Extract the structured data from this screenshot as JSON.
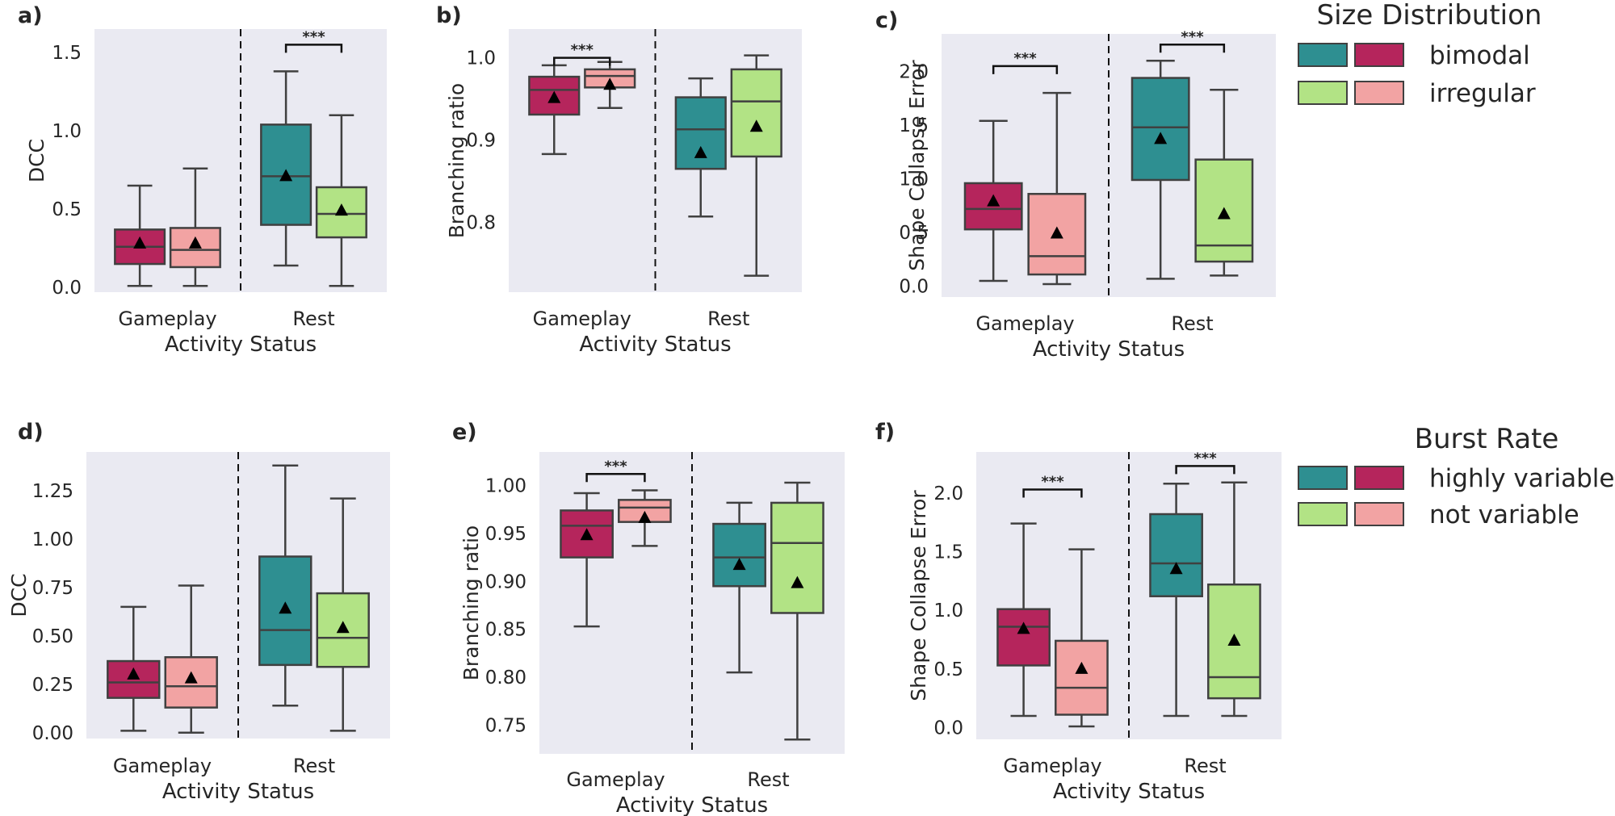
{
  "colors": {
    "teal": "#2e8f91",
    "crimson": "#b5255c",
    "lightgreen": "#b2e385",
    "pink": "#f2a3a3",
    "background": "#eaeaf2"
  },
  "legends": [
    {
      "title": "Size Distribution",
      "entries": [
        {
          "label": "bimodal",
          "swatches": [
            "teal",
            "crimson"
          ]
        },
        {
          "label": "irregular",
          "swatches": [
            "lightgreen",
            "pink"
          ]
        }
      ]
    },
    {
      "title": "Burst Rate",
      "entries": [
        {
          "label": "highly variable",
          "swatches": [
            "teal",
            "crimson"
          ]
        },
        {
          "label": "not variable",
          "swatches": [
            "lightgreen",
            "pink"
          ]
        }
      ]
    }
  ],
  "chart_data": [
    {
      "panel": "a)",
      "type": "box",
      "ylabel": "DCC",
      "xlabel": "Activity Status",
      "ylim": [
        -0.03,
        1.65
      ],
      "yticks": [
        "0.0",
        "0.5",
        "1.0",
        "1.5"
      ],
      "categories": [
        "Gameplay",
        "Rest"
      ],
      "boxes": [
        {
          "cat": 0,
          "side": 0,
          "color": "crimson",
          "whislo": 0.01,
          "q1": 0.15,
          "med": 0.26,
          "q3": 0.37,
          "whishi": 0.65,
          "mean": 0.28
        },
        {
          "cat": 0,
          "side": 1,
          "color": "pink",
          "whislo": 0.01,
          "q1": 0.13,
          "med": 0.24,
          "q3": 0.38,
          "whishi": 0.76,
          "mean": 0.28
        },
        {
          "cat": 1,
          "side": 0,
          "color": "teal",
          "whislo": 0.14,
          "q1": 0.4,
          "med": 0.71,
          "q3": 1.04,
          "whishi": 1.38,
          "mean": 0.71
        },
        {
          "cat": 1,
          "side": 1,
          "color": "lightgreen",
          "whislo": 0.01,
          "q1": 0.32,
          "med": 0.47,
          "q3": 0.64,
          "whishi": 1.1,
          "mean": 0.49
        }
      ],
      "significance": [
        {
          "cat": 1,
          "y": 1.55,
          "label": "***"
        }
      ]
    },
    {
      "panel": "b)",
      "type": "box",
      "ylabel": "Branching ratio",
      "xlabel": "Activity Status",
      "ylim": [
        0.715,
        1.035
      ],
      "yticks": [
        "0.8",
        "0.9",
        "1.0"
      ],
      "categories": [
        "Gameplay",
        "Rest"
      ],
      "boxes": [
        {
          "cat": 0,
          "side": 0,
          "color": "crimson",
          "whislo": 0.883,
          "q1": 0.931,
          "med": 0.961,
          "q3": 0.977,
          "whishi": 0.991,
          "mean": 0.951
        },
        {
          "cat": 0,
          "side": 1,
          "color": "pink",
          "whislo": 0.939,
          "q1": 0.964,
          "med": 0.978,
          "q3": 0.986,
          "whishi": 0.995,
          "mean": 0.967
        },
        {
          "cat": 1,
          "side": 0,
          "color": "teal",
          "whislo": 0.807,
          "q1": 0.865,
          "med": 0.913,
          "q3": 0.952,
          "whishi": 0.975,
          "mean": 0.884
        },
        {
          "cat": 1,
          "side": 1,
          "color": "lightgreen",
          "whislo": 0.735,
          "q1": 0.88,
          "med": 0.947,
          "q3": 0.986,
          "whishi": 1.003,
          "mean": 0.916
        }
      ],
      "significance": [
        {
          "cat": 0,
          "y": 1.0,
          "label": "***"
        }
      ]
    },
    {
      "panel": "c)",
      "type": "box",
      "ylabel": "Shape Collapse Error",
      "xlabel": "Activity Status",
      "ylim": [
        -0.1,
        2.35
      ],
      "yticks": [
        "0.0",
        "0.5",
        "1.0",
        "1.5",
        "2.0"
      ],
      "categories": [
        "Gameplay",
        "Rest"
      ],
      "boxes": [
        {
          "cat": 0,
          "side": 0,
          "color": "crimson",
          "whislo": 0.05,
          "q1": 0.53,
          "med": 0.72,
          "q3": 0.96,
          "whishi": 1.54,
          "mean": 0.79
        },
        {
          "cat": 0,
          "side": 1,
          "color": "pink",
          "whislo": 0.02,
          "q1": 0.11,
          "med": 0.28,
          "q3": 0.86,
          "whishi": 1.8,
          "mean": 0.49
        },
        {
          "cat": 1,
          "side": 0,
          "color": "teal",
          "whislo": 0.07,
          "q1": 0.99,
          "med": 1.48,
          "q3": 1.94,
          "whishi": 2.1,
          "mean": 1.37
        },
        {
          "cat": 1,
          "side": 1,
          "color": "lightgreen",
          "whislo": 0.1,
          "q1": 0.23,
          "med": 0.38,
          "q3": 1.18,
          "whishi": 1.83,
          "mean": 0.67
        }
      ],
      "significance": [
        {
          "cat": 0,
          "y": 2.05,
          "label": "***"
        },
        {
          "cat": 1,
          "y": 2.25,
          "label": "***"
        }
      ]
    },
    {
      "panel": "d)",
      "type": "box",
      "ylabel": "DCC",
      "xlabel": "Activity Status",
      "ylim": [
        -0.03,
        1.45
      ],
      "yticks": [
        "0.00",
        "0.25",
        "0.50",
        "0.75",
        "1.00",
        "1.25"
      ],
      "categories": [
        "Gameplay",
        "Rest"
      ],
      "boxes": [
        {
          "cat": 0,
          "side": 0,
          "color": "crimson",
          "whislo": 0.01,
          "q1": 0.18,
          "med": 0.26,
          "q3": 0.37,
          "whishi": 0.65,
          "mean": 0.3
        },
        {
          "cat": 0,
          "side": 1,
          "color": "pink",
          "whislo": 0.0,
          "q1": 0.13,
          "med": 0.24,
          "q3": 0.39,
          "whishi": 0.76,
          "mean": 0.28
        },
        {
          "cat": 1,
          "side": 0,
          "color": "teal",
          "whislo": 0.14,
          "q1": 0.35,
          "med": 0.53,
          "q3": 0.91,
          "whishi": 1.38,
          "mean": 0.64
        },
        {
          "cat": 1,
          "side": 1,
          "color": "lightgreen",
          "whislo": 0.01,
          "q1": 0.34,
          "med": 0.49,
          "q3": 0.72,
          "whishi": 1.21,
          "mean": 0.54
        }
      ],
      "significance": []
    },
    {
      "panel": "e)",
      "type": "box",
      "ylabel": "Branching ratio",
      "xlabel": "Activity Status",
      "ylim": [
        0.72,
        1.035
      ],
      "yticks": [
        "0.75",
        "0.80",
        "0.85",
        "0.90",
        "0.95",
        "1.00"
      ],
      "categories": [
        "Gameplay",
        "Rest"
      ],
      "boxes": [
        {
          "cat": 0,
          "side": 0,
          "color": "crimson",
          "whislo": 0.853,
          "q1": 0.925,
          "med": 0.958,
          "q3": 0.974,
          "whishi": 0.992,
          "mean": 0.948
        },
        {
          "cat": 0,
          "side": 1,
          "color": "pink",
          "whislo": 0.937,
          "q1": 0.962,
          "med": 0.977,
          "q3": 0.985,
          "whishi": 0.995,
          "mean": 0.966
        },
        {
          "cat": 1,
          "side": 0,
          "color": "teal",
          "whislo": 0.805,
          "q1": 0.895,
          "med": 0.925,
          "q3": 0.96,
          "whishi": 0.982,
          "mean": 0.917
        },
        {
          "cat": 1,
          "side": 1,
          "color": "lightgreen",
          "whislo": 0.735,
          "q1": 0.867,
          "med": 0.94,
          "q3": 0.982,
          "whishi": 1.003,
          "mean": 0.898
        }
      ],
      "significance": [
        {
          "cat": 0,
          "y": 1.012,
          "label": "***"
        }
      ]
    },
    {
      "panel": "f)",
      "type": "box",
      "ylabel": "Shape Collapse Error",
      "xlabel": "Activity Status",
      "ylim": [
        -0.1,
        2.35
      ],
      "yticks": [
        "0.0",
        "0.5",
        "1.0",
        "1.5",
        "2.0"
      ],
      "categories": [
        "Gameplay",
        "Rest"
      ],
      "boxes": [
        {
          "cat": 0,
          "side": 0,
          "color": "crimson",
          "whislo": 0.1,
          "q1": 0.53,
          "med": 0.86,
          "q3": 1.01,
          "whishi": 1.74,
          "mean": 0.84
        },
        {
          "cat": 0,
          "side": 1,
          "color": "pink",
          "whislo": 0.01,
          "q1": 0.11,
          "med": 0.34,
          "q3": 0.74,
          "whishi": 1.52,
          "mean": 0.5
        },
        {
          "cat": 1,
          "side": 0,
          "color": "teal",
          "whislo": 0.1,
          "q1": 1.12,
          "med": 1.4,
          "q3": 1.82,
          "whishi": 2.08,
          "mean": 1.35
        },
        {
          "cat": 1,
          "side": 1,
          "color": "lightgreen",
          "whislo": 0.1,
          "q1": 0.25,
          "med": 0.43,
          "q3": 1.22,
          "whishi": 2.09,
          "mean": 0.74
        }
      ],
      "significance": [
        {
          "cat": 0,
          "y": 2.03,
          "label": "***"
        },
        {
          "cat": 1,
          "y": 2.23,
          "label": "***"
        }
      ]
    }
  ]
}
